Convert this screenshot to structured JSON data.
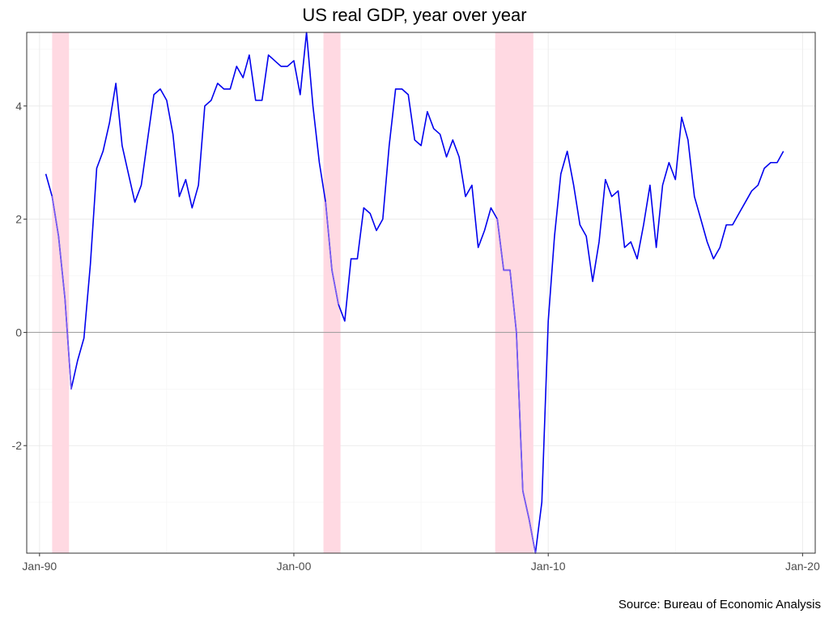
{
  "chart_data": {
    "type": "line",
    "title": "US real GDP, year over year",
    "caption": "Source: Bureau of Economic Analysis",
    "xlabel": "",
    "ylabel": "",
    "x_type": "date",
    "xlim": [
      "1989-07-01",
      "2020-07-01"
    ],
    "ylim": [
      -3.9,
      5.3
    ],
    "x_ticks": [
      {
        "date": "1990-01-01",
        "label": "Jan-90"
      },
      {
        "date": "2000-01-01",
        "label": "Jan-00"
      },
      {
        "date": "2010-01-01",
        "label": "Jan-10"
      },
      {
        "date": "2020-01-01",
        "label": "Jan-20"
      }
    ],
    "y_ticks": [
      -2,
      0,
      2,
      4
    ],
    "grid": true,
    "zero_line": true,
    "colors": {
      "line": "#0000ee",
      "recession_line": "#7a5cf0",
      "recession_band": "#ffd9e2",
      "grid": "#ebebeb",
      "axis": "#333333",
      "zero": "#999999"
    },
    "recessions": [
      {
        "start": "1990-07-01",
        "end": "1991-03-01"
      },
      {
        "start": "2001-03-01",
        "end": "2001-11-01"
      },
      {
        "start": "2007-12-01",
        "end": "2009-06-01"
      }
    ],
    "series": [
      {
        "x": [
          "1990-04-01",
          "1990-07-01",
          "1990-10-01",
          "1991-01-01",
          "1991-04-01",
          "1991-07-01",
          "1991-10-01",
          "1992-01-01",
          "1992-04-01",
          "1992-07-01",
          "1992-10-01",
          "1993-01-01",
          "1993-04-01",
          "1993-07-01",
          "1993-10-01",
          "1994-01-01",
          "1994-04-01",
          "1994-07-01",
          "1994-10-01",
          "1995-01-01",
          "1995-04-01",
          "1995-07-01",
          "1995-10-01",
          "1996-01-01",
          "1996-04-01",
          "1996-07-01",
          "1996-10-01",
          "1997-01-01",
          "1997-04-01",
          "1997-07-01",
          "1997-10-01",
          "1998-01-01",
          "1998-04-01",
          "1998-07-01",
          "1998-10-01",
          "1999-01-01",
          "1999-04-01",
          "1999-07-01",
          "1999-10-01",
          "2000-01-01",
          "2000-04-01",
          "2000-07-01",
          "2000-10-01",
          "2001-01-01",
          "2001-04-01",
          "2001-07-01",
          "2001-10-01",
          "2002-01-01",
          "2002-04-01",
          "2002-07-01",
          "2002-10-01",
          "2003-01-01",
          "2003-04-01",
          "2003-07-01",
          "2003-10-01",
          "2004-01-01",
          "2004-04-01",
          "2004-07-01",
          "2004-10-01",
          "2005-01-01",
          "2005-04-01",
          "2005-07-01",
          "2005-10-01",
          "2006-01-01",
          "2006-04-01",
          "2006-07-01",
          "2006-10-01",
          "2007-01-01",
          "2007-04-01",
          "2007-07-01",
          "2007-10-01",
          "2008-01-01",
          "2008-04-01",
          "2008-07-01",
          "2008-10-01",
          "2009-01-01",
          "2009-04-01",
          "2009-07-01",
          "2009-10-01",
          "2010-01-01",
          "2010-04-01",
          "2010-07-01",
          "2010-10-01",
          "2011-01-01",
          "2011-04-01",
          "2011-07-01",
          "2011-10-01",
          "2012-01-01",
          "2012-04-01",
          "2012-07-01",
          "2012-10-01",
          "2013-01-01",
          "2013-04-01",
          "2013-07-01",
          "2013-10-01",
          "2014-01-01",
          "2014-04-01",
          "2014-07-01",
          "2014-10-01",
          "2015-01-01",
          "2015-04-01",
          "2015-07-01",
          "2015-10-01",
          "2016-01-01",
          "2016-04-01",
          "2016-07-01",
          "2016-10-01",
          "2017-01-01",
          "2017-04-01",
          "2017-07-01",
          "2017-10-01",
          "2018-01-01",
          "2018-04-01",
          "2018-07-01",
          "2018-10-01",
          "2019-01-01",
          "2019-04-01"
        ],
        "values": [
          2.8,
          2.4,
          1.7,
          0.6,
          -1.0,
          -0.5,
          -0.1,
          1.2,
          2.9,
          3.2,
          3.7,
          4.4,
          3.3,
          2.8,
          2.3,
          2.6,
          3.4,
          4.2,
          4.3,
          4.1,
          3.5,
          2.4,
          2.7,
          2.2,
          2.6,
          4.0,
          4.1,
          4.4,
          4.3,
          4.3,
          4.7,
          4.5,
          4.9,
          4.1,
          4.1,
          4.9,
          4.8,
          4.7,
          4.7,
          4.8,
          4.2,
          5.3,
          4.0,
          3.0,
          2.3,
          1.1,
          0.5,
          0.2,
          1.3,
          1.3,
          2.2,
          2.1,
          1.8,
          2.0,
          3.3,
          4.3,
          4.3,
          4.2,
          3.4,
          3.3,
          3.9,
          3.6,
          3.5,
          3.1,
          3.4,
          3.1,
          2.4,
          2.6,
          1.5,
          1.8,
          2.2,
          2.0,
          1.1,
          1.1,
          0.0,
          -2.8,
          -3.3,
          -3.9,
          -3.0,
          0.2,
          1.7,
          2.8,
          3.2,
          2.6,
          1.9,
          1.7,
          0.9,
          1.6,
          2.7,
          2.4,
          2.5,
          1.5,
          1.6,
          1.3,
          1.9,
          2.6,
          1.5,
          2.6,
          3.0,
          2.7,
          3.8,
          3.4,
          2.4,
          2.0,
          1.6,
          1.3,
          1.5,
          1.9,
          1.9,
          2.1,
          2.3,
          2.5,
          2.6,
          2.9,
          3.0,
          3.0,
          3.2
        ]
      }
    ]
  }
}
